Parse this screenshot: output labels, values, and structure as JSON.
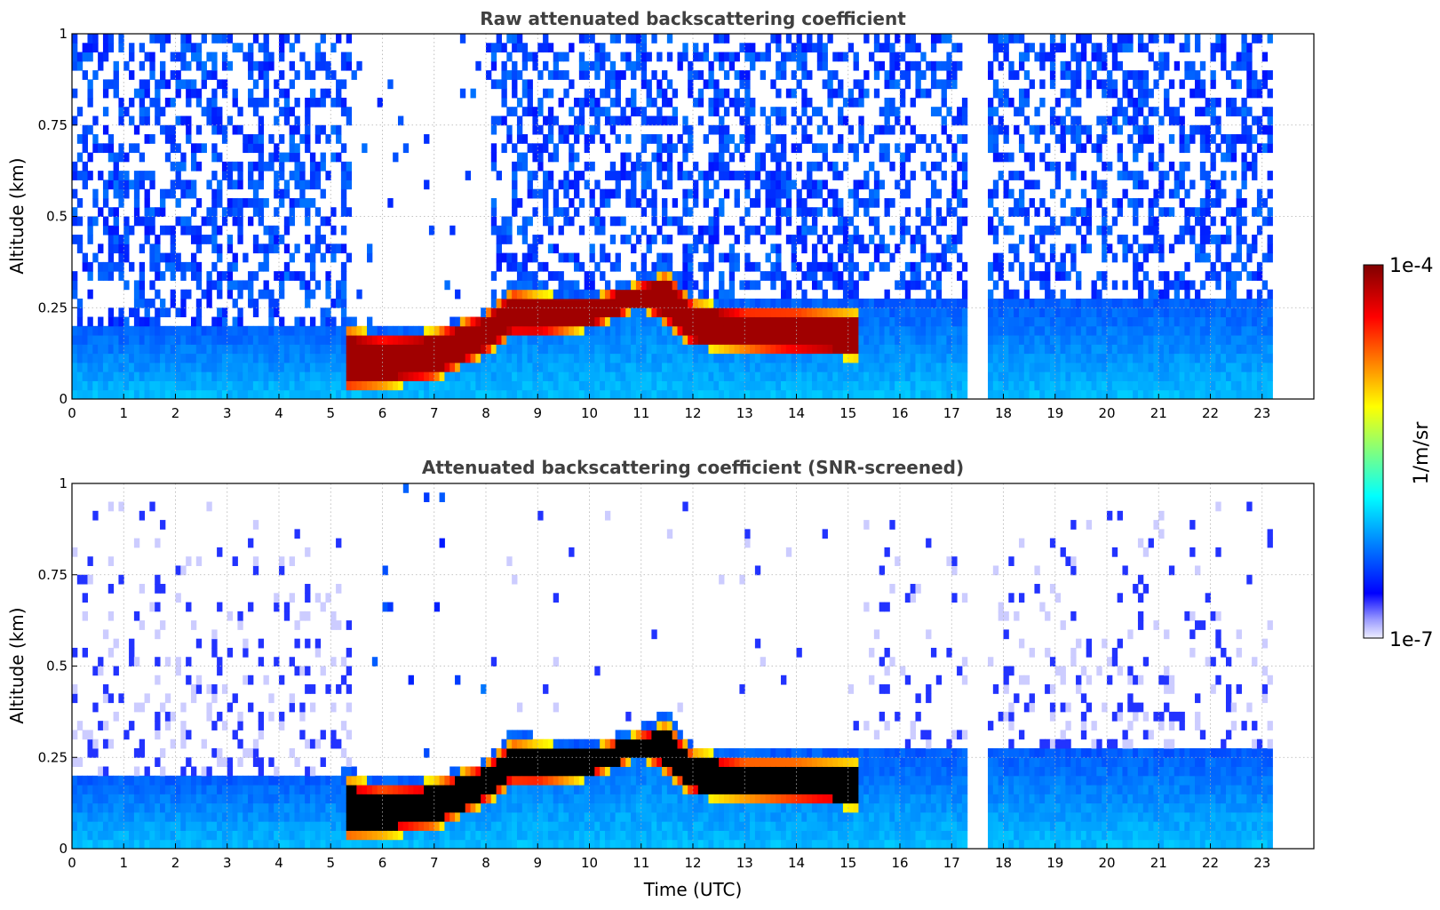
{
  "chart_data": [
    {
      "type": "heatmap",
      "title": "Raw attenuated backscattering coefficient",
      "xlabel": "",
      "ylabel": "Altitude (km)",
      "xlim": [
        0,
        24
      ],
      "ylim": [
        0,
        1
      ],
      "x_ticks": [
        "0",
        "1",
        "2",
        "3",
        "4",
        "5",
        "6",
        "7",
        "8",
        "9",
        "10",
        "11",
        "12",
        "13",
        "14",
        "15",
        "16",
        "17",
        "18",
        "19",
        "20",
        "21",
        "22",
        "23"
      ],
      "y_ticks": [
        {
          "value": 0,
          "label": "0"
        },
        {
          "value": 0.25,
          "label": "0.25"
        },
        {
          "value": 0.5,
          "label": "0.5"
        },
        {
          "value": 0.75,
          "label": "0.75"
        },
        {
          "value": 1,
          "label": "1"
        }
      ],
      "grid": true,
      "color_scale": "log",
      "colormap": "jet",
      "data_end_hour": 23.2,
      "data_gaps_hours": [
        [
          17.3,
          17.6
        ]
      ],
      "boundary_layer_top_km": [
        [
          0,
          0.2
        ],
        [
          5.0,
          0.2
        ],
        [
          5.3,
          0.22
        ],
        [
          6,
          0.19
        ],
        [
          7,
          0.2
        ],
        [
          8,
          0.24
        ],
        [
          8.5,
          0.33
        ],
        [
          9,
          0.31
        ],
        [
          10,
          0.29
        ],
        [
          11,
          0.34
        ],
        [
          11.5,
          0.38
        ],
        [
          12,
          0.28
        ],
        [
          13,
          0.28
        ],
        [
          14,
          0.27
        ],
        [
          15.2,
          0.27
        ],
        [
          16,
          0.27
        ],
        [
          17,
          0.27
        ],
        [
          23.2,
          0.27
        ]
      ],
      "high_backscatter_layer_km": [
        [
          5.3,
          0.02,
          0.2
        ],
        [
          6,
          0.03,
          0.18
        ],
        [
          7,
          0.05,
          0.19
        ],
        [
          8,
          0.12,
          0.24
        ],
        [
          8.5,
          0.17,
          0.3
        ],
        [
          9,
          0.17,
          0.29
        ],
        [
          10,
          0.19,
          0.28
        ],
        [
          11,
          0.25,
          0.32
        ],
        [
          11.5,
          0.2,
          0.35
        ],
        [
          12,
          0.14,
          0.27
        ],
        [
          13,
          0.13,
          0.25
        ],
        [
          14,
          0.12,
          0.25
        ],
        [
          15.2,
          0.11,
          0.24
        ]
      ]
    },
    {
      "type": "heatmap",
      "title": "Attenuated backscattering coefficient (SNR-screened)",
      "xlabel": "Time (UTC)",
      "ylabel": "Altitude (km)",
      "xlim": [
        0,
        24
      ],
      "ylim": [
        0,
        1
      ],
      "x_ticks": [
        "0",
        "1",
        "2",
        "3",
        "4",
        "5",
        "6",
        "7",
        "8",
        "9",
        "10",
        "11",
        "12",
        "13",
        "14",
        "15",
        "16",
        "17",
        "18",
        "19",
        "20",
        "21",
        "22",
        "23"
      ],
      "y_ticks": [
        {
          "value": 0,
          "label": "0"
        },
        {
          "value": 0.25,
          "label": "0.25"
        },
        {
          "value": 0.5,
          "label": "0.5"
        },
        {
          "value": 0.75,
          "label": "0.75"
        },
        {
          "value": 1,
          "label": "1"
        }
      ],
      "grid": true,
      "color_scale": "log",
      "colormap": "jet",
      "data_end_hour": 23.2,
      "data_gaps_hours": [
        [
          17.3,
          17.6
        ]
      ],
      "saturated_color": "#000000"
    }
  ],
  "colorbar": {
    "label": "1/m/sr",
    "max_label": "1e-4",
    "min_label": "1e-7",
    "colors": [
      "#eeeeff",
      "#aaaaff",
      "#0000ff",
      "#00ffff",
      "#ffff00",
      "#ff0000",
      "#800000"
    ]
  }
}
